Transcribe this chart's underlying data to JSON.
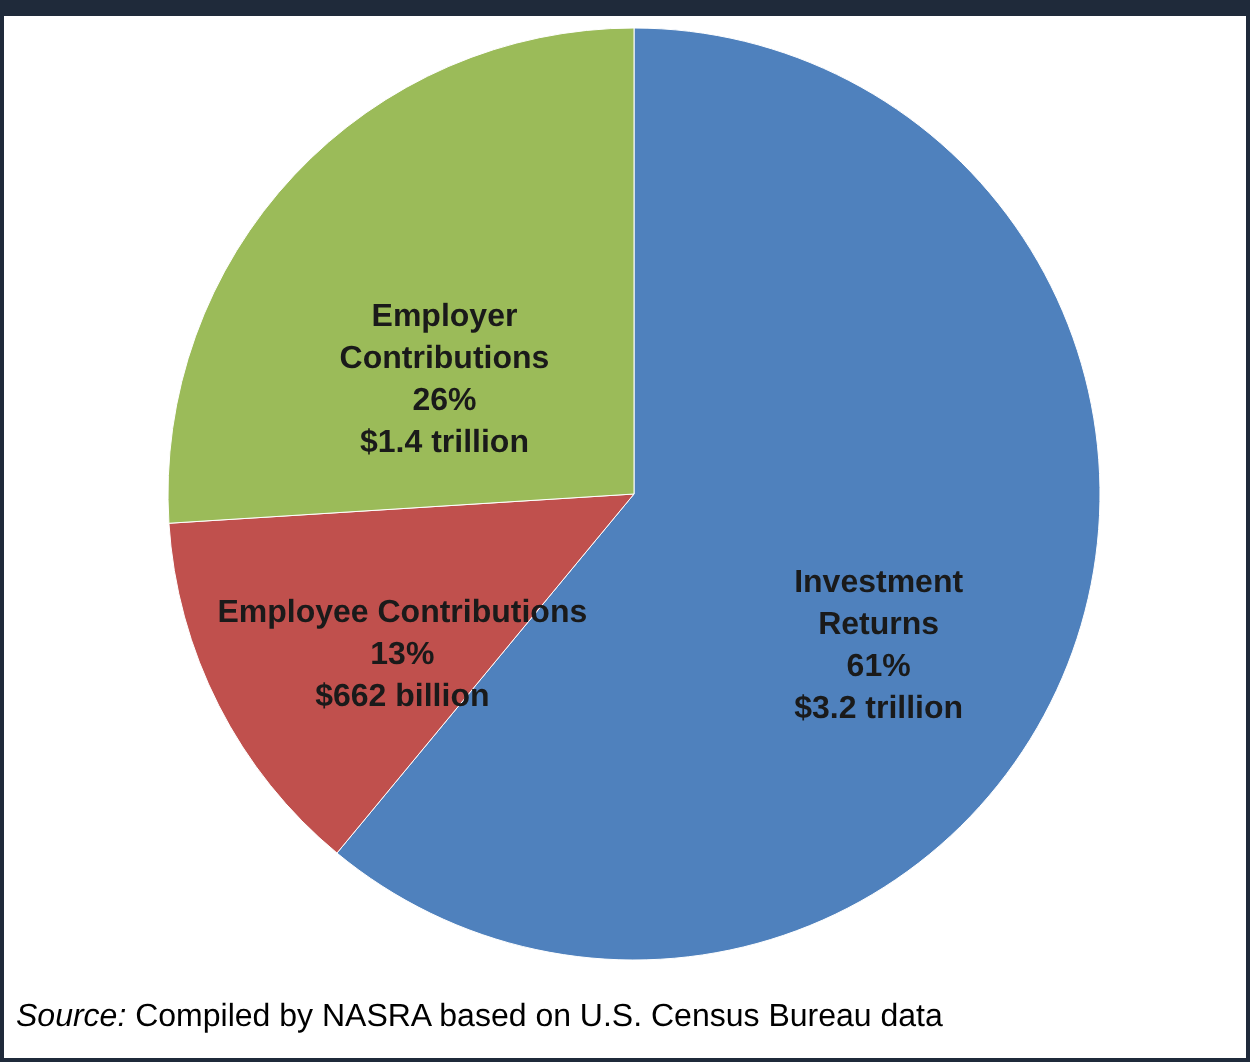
{
  "chart_data": {
    "type": "pie",
    "categories": [
      "Investment\nReturns",
      "Employee Contributions",
      "Employer\nContributions"
    ],
    "values": [
      61,
      13,
      26
    ],
    "colors": [
      "#4f81bd",
      "#c0504d",
      "#9bbb59"
    ],
    "value_labels": [
      "61%\n$3.2 trillion",
      "13%\n$662 billion",
      "26%\n$1.4 trillion"
    ],
    "legend": false,
    "annotations": [
      "Source: Compiled by NASRA based on U.S. Census Bureau data"
    ]
  }
}
